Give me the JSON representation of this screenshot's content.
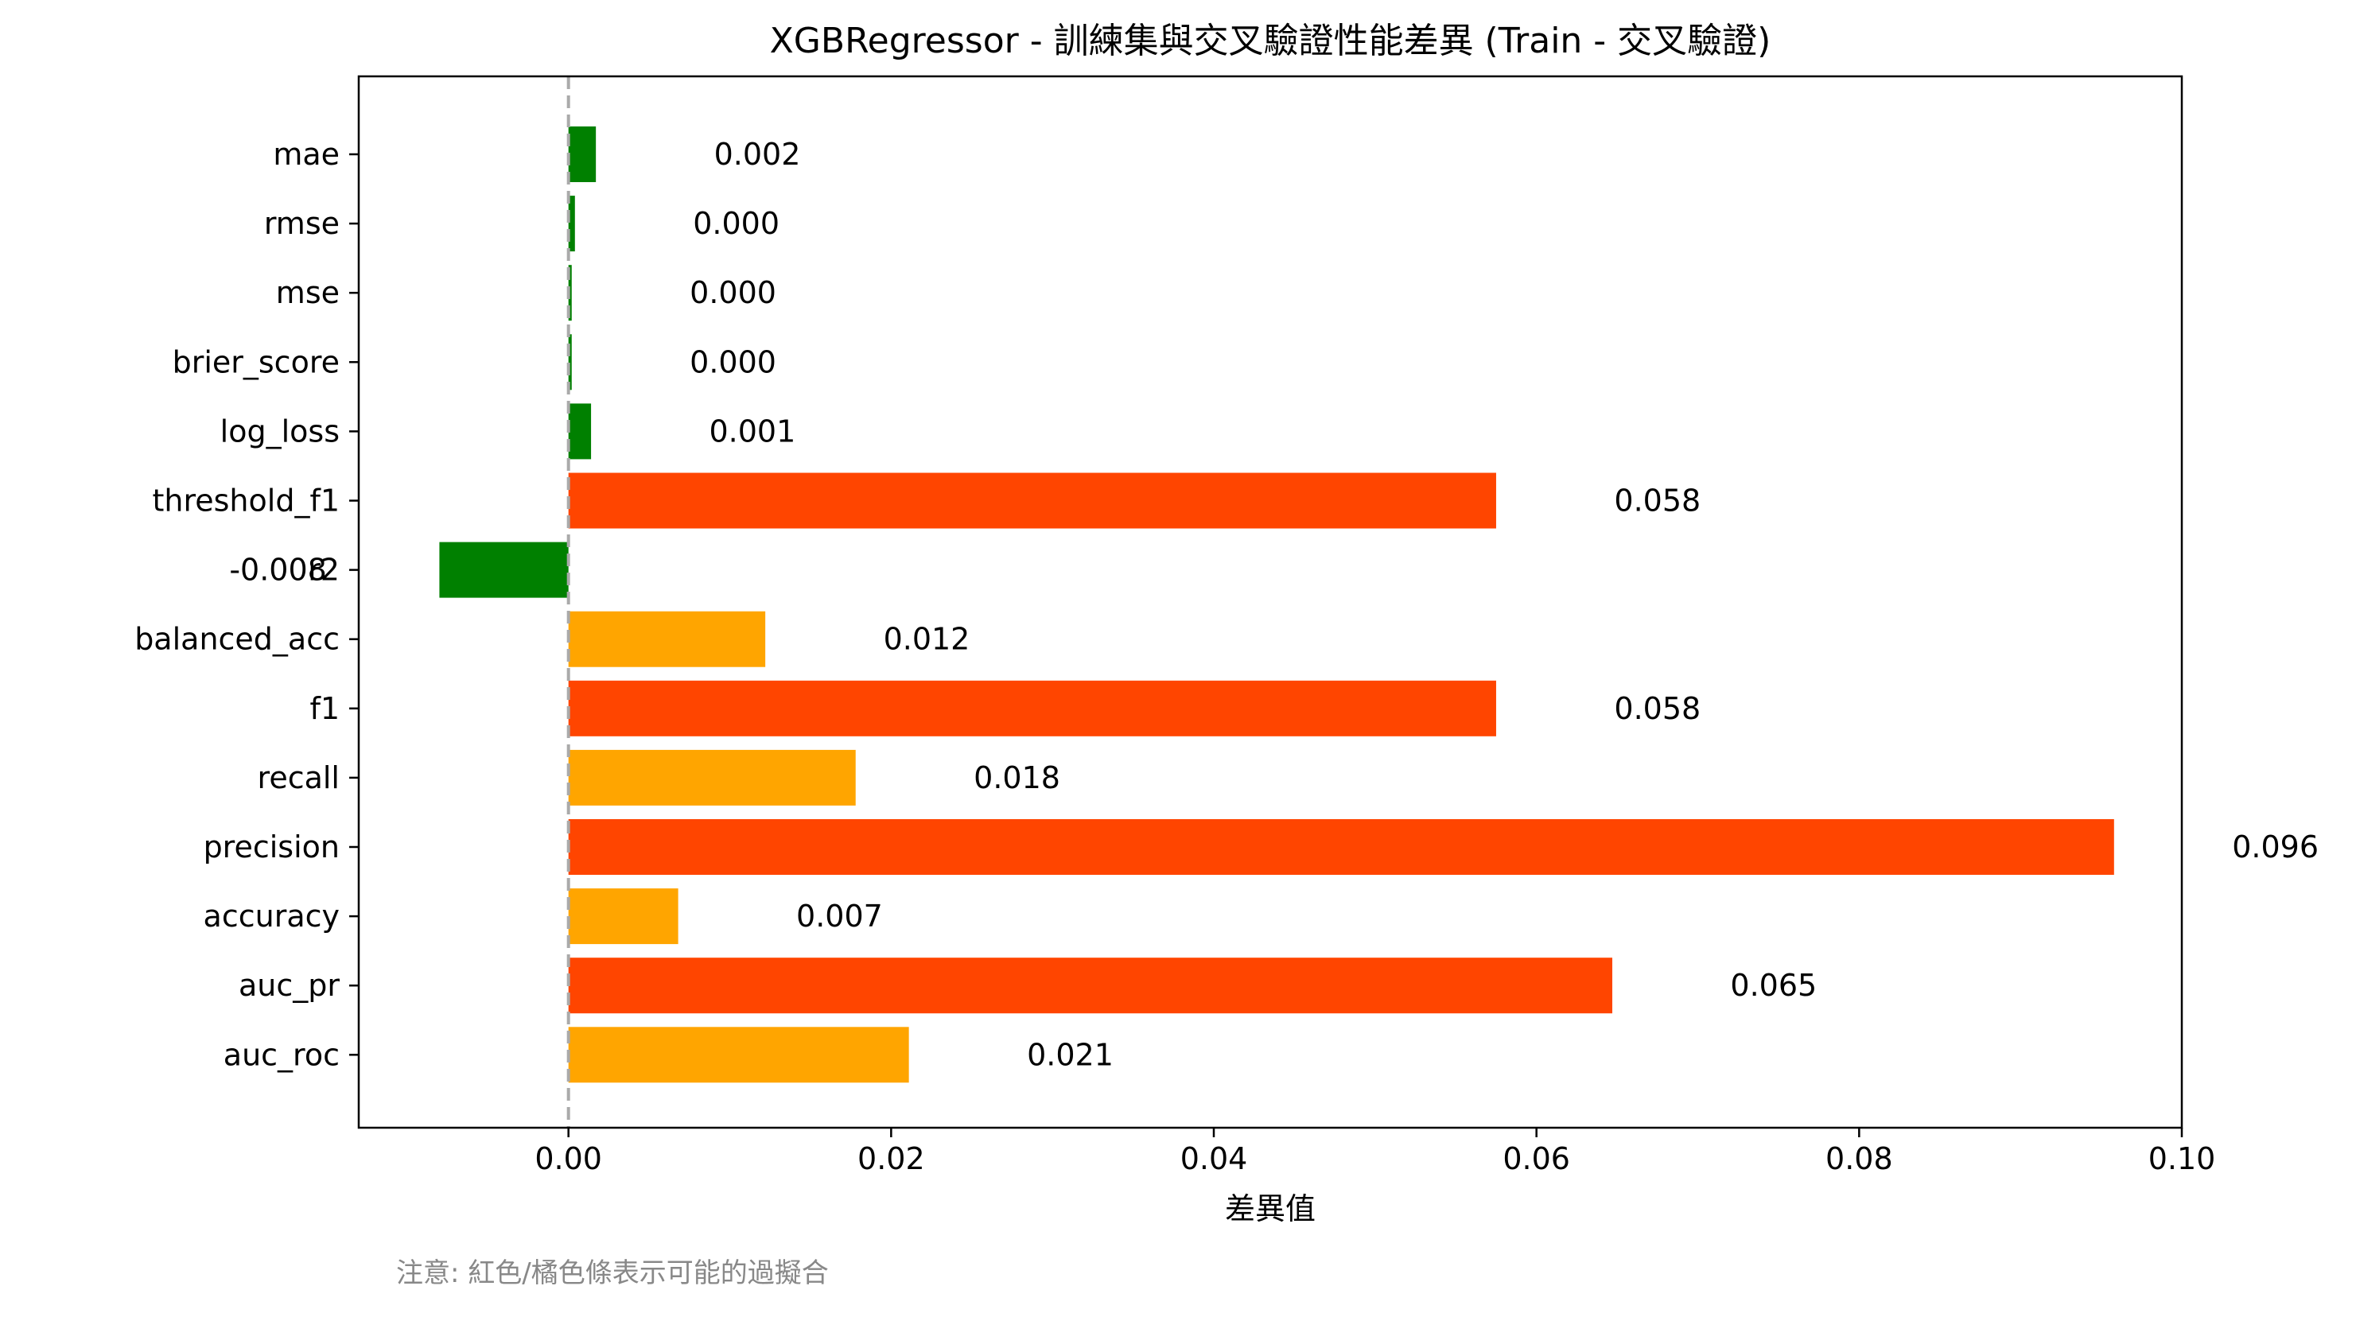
{
  "chart_data": {
    "type": "bar",
    "orientation": "horizontal",
    "title": "XGBRegressor - 訓練集與交叉驗證性能差異 (Train - 交叉驗證)",
    "xlabel": "差異值",
    "ylabel": "",
    "xlim": [
      -0.013,
      0.1
    ],
    "xticks": [
      "0.00",
      "0.02",
      "0.04",
      "0.06",
      "0.08",
      "0.10"
    ],
    "xtick_values": [
      0.0,
      0.02,
      0.04,
      0.06,
      0.08,
      0.1
    ],
    "reference_line": {
      "x": 0,
      "style": "dashed",
      "color": "#aaaaaa"
    },
    "categories": [
      "mae",
      "rmse",
      "mse",
      "brier_score",
      "log_loss",
      "threshold_f1",
      "r2",
      "balanced_acc",
      "f1",
      "recall",
      "precision",
      "accuracy",
      "auc_pr",
      "auc_roc"
    ],
    "values": [
      0.0017,
      0.0004,
      0.0002,
      0.0002,
      0.0014,
      0.0575,
      -0.008,
      0.0122,
      0.0575,
      0.0178,
      0.0958,
      0.0068,
      0.0647,
      0.0211
    ],
    "value_labels": [
      "0.002",
      "0.000",
      "0.000",
      "0.000",
      "0.001",
      "0.058",
      "-0.008",
      "0.012",
      "0.058",
      "0.018",
      "0.096",
      "0.007",
      "0.065",
      "0.021"
    ],
    "bar_colors": [
      "#008000",
      "#008000",
      "#008000",
      "#008000",
      "#008000",
      "#ff4500",
      "#008000",
      "#ffa500",
      "#ff4500",
      "#ffa500",
      "#ff4500",
      "#ffa500",
      "#ff4500",
      "#ffa500"
    ],
    "grid": false
  },
  "note": "注意: 紅色/橘色條表示可能的過擬合"
}
